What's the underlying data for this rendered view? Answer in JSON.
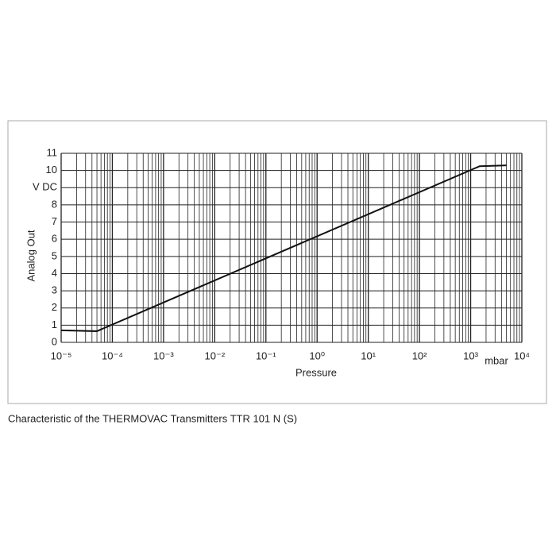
{
  "chart_data": {
    "type": "line",
    "caption": "Characteristic of the THERMOVAC Transmitters TTR 101 N (S)",
    "xlabel": "Pressure",
    "ylabel": "Analog Out",
    "x_unit": "mbar",
    "xscale": "log",
    "grid": true,
    "color": "#111111",
    "x": [
      1e-05,
      5e-05,
      1500,
      5000
    ],
    "values": [
      0.7,
      0.65,
      10.25,
      10.3
    ],
    "xlim": [
      1e-05,
      10000
    ],
    "xticks": [
      {
        "value": 1e-05,
        "label": "10⁻⁵"
      },
      {
        "value": 0.0001,
        "label": "10⁻⁴"
      },
      {
        "value": 0.001,
        "label": "10⁻³"
      },
      {
        "value": 0.01,
        "label": "10⁻²"
      },
      {
        "value": 0.1,
        "label": "10⁻¹"
      },
      {
        "value": 1,
        "label": "10⁰"
      },
      {
        "value": 10,
        "label": "10¹"
      },
      {
        "value": 100,
        "label": "10²"
      },
      {
        "value": 1000,
        "label": "10³"
      },
      {
        "value": 10000,
        "label": "10⁴"
      }
    ],
    "ylim": [
      0,
      11
    ],
    "yticks": [
      0,
      1,
      2,
      3,
      4,
      5,
      6,
      7,
      8,
      {
        "value": 9,
        "label": "V DC"
      },
      10,
      11
    ]
  }
}
